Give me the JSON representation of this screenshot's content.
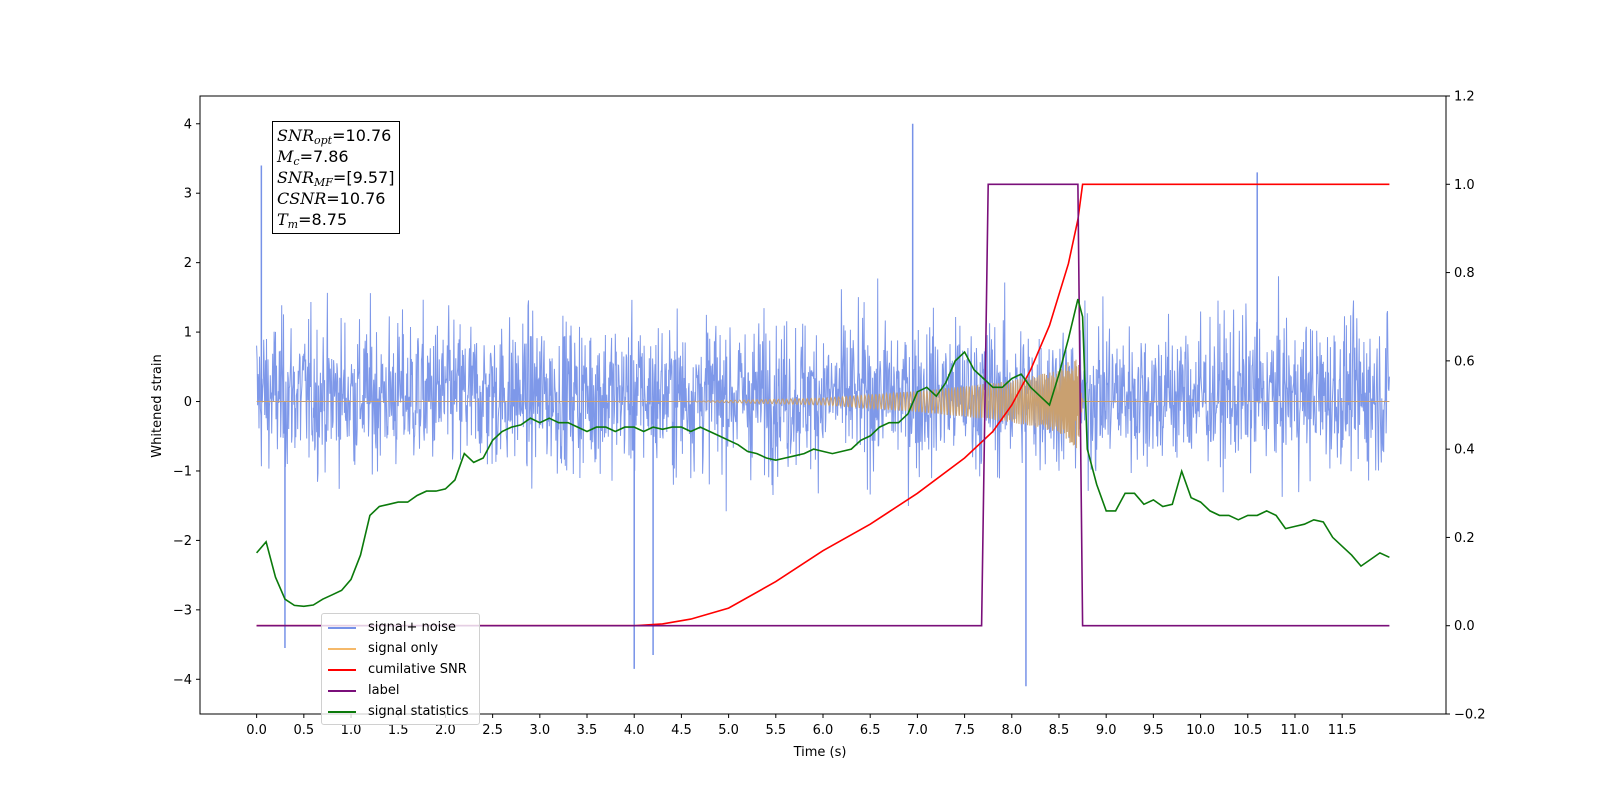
{
  "chart_data": {
    "type": "line",
    "xlabel": "Time (s)",
    "ylabel": "Whitened strain",
    "x_ticks": [
      0.0,
      0.5,
      1.0,
      1.5,
      2.0,
      2.5,
      3.0,
      3.5,
      4.0,
      4.5,
      5.0,
      5.5,
      6.0,
      6.5,
      7.0,
      7.5,
      8.0,
      8.5,
      9.0,
      9.5,
      10.0,
      10.5,
      11.0,
      11.5
    ],
    "x_tick_labels": [
      "0.0",
      "0.5",
      "1.0",
      "1.5",
      "2.0",
      "2.5",
      "3.0",
      "3.5",
      "4.0",
      "4.5",
      "5.0",
      "5.5",
      "6.0",
      "6.5",
      "7.0",
      "7.5",
      "8.0",
      "8.5",
      "9.0",
      "9.5",
      "10.0",
      "10.5",
      "11.0",
      "11.5"
    ],
    "xlim": [
      -0.6,
      12.6
    ],
    "ylim_left": [
      -4.5,
      4.4
    ],
    "y_ticks_left": [
      -4,
      -3,
      -2,
      -1,
      0,
      1,
      2,
      3,
      4
    ],
    "y_tick_labels_left": [
      "−4",
      "−3",
      "−2",
      "−1",
      "0",
      "1",
      "2",
      "3",
      "4"
    ],
    "ylim_right": [
      -0.2,
      1.2
    ],
    "y_ticks_right": [
      -0.2,
      0.0,
      0.2,
      0.4,
      0.6,
      0.8,
      1.0,
      1.2
    ],
    "y_tick_labels_right": [
      "−0.2",
      "0.0",
      "0.2",
      "0.4",
      "0.6",
      "0.8",
      "1.0",
      "1.2"
    ],
    "legend_position": "lower-left",
    "series": [
      {
        "name": "signal+ noise",
        "color": "#7792e8",
        "axis": "left",
        "note_time_range": [
          0.0,
          12.0
        ],
        "typical_range": [
          -2.1,
          2.4
        ],
        "peaks": [
          {
            "x": 6.95,
            "y": 4.0
          },
          {
            "x": 8.15,
            "y": -4.1
          },
          {
            "x": 0.3,
            "y": -3.55
          },
          {
            "x": 4.2,
            "y": -3.65
          },
          {
            "x": 4.0,
            "y": -3.85
          },
          {
            "x": 0.05,
            "y": 3.4
          },
          {
            "x": 10.6,
            "y": 3.3
          }
        ]
      },
      {
        "name": "signal only",
        "color": "#f5b96a",
        "axis": "left",
        "envelope": {
          "x": [
            0.0,
            4.5,
            6.0,
            7.0,
            7.5,
            8.0,
            8.5,
            8.7,
            8.75,
            12.0
          ],
          "amp": [
            0.0,
            0.0,
            0.05,
            0.15,
            0.22,
            0.3,
            0.45,
            0.7,
            0.02,
            0.0
          ]
        }
      },
      {
        "name": "cumilative SNR",
        "color": "#ff0000",
        "axis": "right",
        "x": [
          0.0,
          4.0,
          4.3,
          4.6,
          5.0,
          5.5,
          6.0,
          6.5,
          7.0,
          7.5,
          7.8,
          8.0,
          8.2,
          8.4,
          8.6,
          8.7,
          8.75,
          12.0
        ],
        "y": [
          0.0,
          0.0,
          0.004,
          0.015,
          0.04,
          0.1,
          0.17,
          0.23,
          0.3,
          0.38,
          0.44,
          0.5,
          0.58,
          0.68,
          0.82,
          0.92,
          1.0,
          1.0
        ]
      },
      {
        "name": "label",
        "color": "#7a0f7a",
        "axis": "right",
        "x": [
          0.0,
          7.68,
          7.75,
          8.7,
          8.75,
          12.0
        ],
        "y": [
          0.0,
          0.0,
          1.0,
          1.0,
          0.0,
          0.0
        ]
      },
      {
        "name": "signal statistics",
        "color": "#0b7a0b",
        "axis": "right",
        "x": [
          0.0,
          0.1,
          0.2,
          0.3,
          0.4,
          0.5,
          0.6,
          0.7,
          0.8,
          0.9,
          1.0,
          1.1,
          1.2,
          1.3,
          1.4,
          1.5,
          1.6,
          1.7,
          1.8,
          1.9,
          2.0,
          2.1,
          2.2,
          2.3,
          2.4,
          2.5,
          2.6,
          2.7,
          2.8,
          2.9,
          3.0,
          3.1,
          3.2,
          3.3,
          3.4,
          3.5,
          3.6,
          3.7,
          3.8,
          3.9,
          4.0,
          4.1,
          4.2,
          4.3,
          4.4,
          4.5,
          4.6,
          4.7,
          4.8,
          4.9,
          5.0,
          5.1,
          5.2,
          5.3,
          5.4,
          5.5,
          5.6,
          5.7,
          5.8,
          5.9,
          6.0,
          6.1,
          6.2,
          6.3,
          6.4,
          6.5,
          6.6,
          6.7,
          6.8,
          6.9,
          7.0,
          7.1,
          7.2,
          7.3,
          7.4,
          7.5,
          7.6,
          7.7,
          7.8,
          7.9,
          8.0,
          8.1,
          8.2,
          8.3,
          8.4,
          8.5,
          8.6,
          8.7,
          8.75,
          8.8,
          8.9,
          9.0,
          9.1,
          9.2,
          9.3,
          9.4,
          9.5,
          9.6,
          9.7,
          9.8,
          9.9,
          10.0,
          10.1,
          10.2,
          10.3,
          10.4,
          10.5,
          10.6,
          10.7,
          10.8,
          10.9,
          11.0,
          11.1,
          11.2,
          11.3,
          11.4,
          11.5,
          11.6,
          11.7,
          11.8,
          11.9,
          12.0
        ],
        "y": [
          0.165,
          0.19,
          0.11,
          0.06,
          0.046,
          0.044,
          0.047,
          0.06,
          0.07,
          0.08,
          0.105,
          0.16,
          0.25,
          0.27,
          0.275,
          0.28,
          0.28,
          0.295,
          0.305,
          0.305,
          0.31,
          0.33,
          0.39,
          0.37,
          0.38,
          0.42,
          0.44,
          0.45,
          0.455,
          0.47,
          0.46,
          0.47,
          0.46,
          0.46,
          0.45,
          0.44,
          0.45,
          0.45,
          0.44,
          0.45,
          0.45,
          0.44,
          0.45,
          0.445,
          0.45,
          0.45,
          0.44,
          0.45,
          0.44,
          0.43,
          0.42,
          0.41,
          0.395,
          0.39,
          0.38,
          0.375,
          0.38,
          0.385,
          0.39,
          0.4,
          0.395,
          0.39,
          0.395,
          0.4,
          0.42,
          0.43,
          0.45,
          0.46,
          0.46,
          0.48,
          0.53,
          0.54,
          0.52,
          0.55,
          0.6,
          0.62,
          0.58,
          0.56,
          0.54,
          0.54,
          0.56,
          0.57,
          0.54,
          0.52,
          0.5,
          0.57,
          0.65,
          0.74,
          0.7,
          0.4,
          0.32,
          0.26,
          0.26,
          0.3,
          0.3,
          0.275,
          0.285,
          0.27,
          0.275,
          0.35,
          0.29,
          0.28,
          0.26,
          0.25,
          0.25,
          0.24,
          0.25,
          0.25,
          0.26,
          0.25,
          0.22,
          0.225,
          0.23,
          0.24,
          0.235,
          0.2,
          0.18,
          0.16,
          0.135,
          0.15,
          0.165,
          0.155
        ]
      }
    ]
  },
  "annotation": {
    "snr_opt_label": "SNR",
    "snr_opt_sub": "opt",
    "snr_opt_value": "=10.76",
    "mc_label": "M",
    "mc_sub": "c",
    "mc_value": "=7.86",
    "snr_mf_label": "SNR",
    "snr_mf_sub": "MF",
    "snr_mf_value": "=[9.57]",
    "csnr_label": "CSNR",
    "csnr_value": "=10.76",
    "tm_label": "T",
    "tm_sub": "m",
    "tm_value": "=8.75"
  },
  "legend": {
    "items": [
      {
        "label": "signal+ noise",
        "color": "#7792e8"
      },
      {
        "label": "signal only",
        "color": "#f5b96a"
      },
      {
        "label": "cumilative SNR",
        "color": "#ff0000"
      },
      {
        "label": "label",
        "color": "#7a0f7a"
      },
      {
        "label": "signal statistics",
        "color": "#0b7a0b"
      }
    ]
  }
}
